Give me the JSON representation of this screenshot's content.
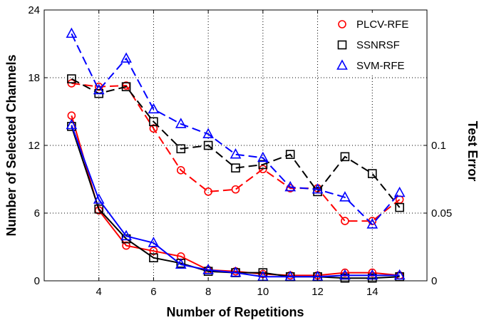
{
  "chart_data": {
    "type": "line",
    "title": "",
    "xlabel": "Number of Repetitions",
    "ylabel": "Number of Selected Channels",
    "y2label": "Test Error",
    "xlim": [
      2,
      16
    ],
    "ylim": [
      0,
      24
    ],
    "y2lim": [
      0,
      0.2
    ],
    "xticks": [
      "4",
      "6",
      "8",
      "10",
      "12",
      "14"
    ],
    "yticks": [
      "6",
      "12",
      "18",
      "24"
    ],
    "y0label": "0",
    "y2ticks": [
      "0",
      "0.05",
      "0.1"
    ],
    "grid": "dotted",
    "legend_position": "top-right",
    "x": [
      3,
      4,
      5,
      6,
      7,
      8,
      9,
      10,
      11,
      12,
      13,
      14,
      15
    ],
    "series": [
      {
        "name": "PLCV-RFE",
        "color": "#ff0000",
        "marker": "circle",
        "channels": [
          17.5,
          17.2,
          17.3,
          13.5,
          9.8,
          7.9,
          8.1,
          9.9,
          8.2,
          8.2,
          5.3,
          5.3,
          7.2
        ],
        "test_error": [
          0.122,
          0.052,
          0.026,
          0.022,
          0.018,
          0.008,
          0.007,
          0.005,
          0.004,
          0.004,
          0.006,
          0.006,
          0.004
        ]
      },
      {
        "name": "SSNRSF",
        "color": "#000000",
        "marker": "square",
        "channels": [
          17.9,
          16.6,
          17.2,
          14.1,
          11.7,
          12.0,
          10.0,
          10.3,
          11.2,
          7.9,
          11.0,
          9.5,
          6.5
        ],
        "test_error": [
          0.114,
          0.053,
          0.031,
          0.017,
          0.013,
          0.007,
          0.006,
          0.006,
          0.003,
          0.003,
          0.002,
          0.002,
          0.003
        ]
      },
      {
        "name": "SVM-RFE",
        "color": "#0000ff",
        "marker": "triangle",
        "channels": [
          21.9,
          16.9,
          19.7,
          15.2,
          13.9,
          13.0,
          11.2,
          10.9,
          8.3,
          8.1,
          7.4,
          5.0,
          7.8
        ],
        "test_error": [
          0.115,
          0.06,
          0.033,
          0.028,
          0.012,
          0.008,
          0.006,
          0.003,
          0.003,
          0.003,
          0.004,
          0.004,
          0.004
        ]
      }
    ]
  }
}
